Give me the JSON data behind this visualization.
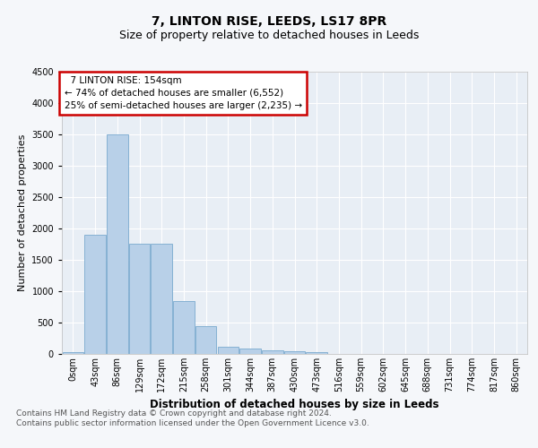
{
  "title1": "7, LINTON RISE, LEEDS, LS17 8PR",
  "title2": "Size of property relative to detached houses in Leeds",
  "xlabel": "Distribution of detached houses by size in Leeds",
  "ylabel": "Number of detached properties",
  "bar_labels": [
    "0sqm",
    "43sqm",
    "86sqm",
    "129sqm",
    "172sqm",
    "215sqm",
    "258sqm",
    "301sqm",
    "344sqm",
    "387sqm",
    "430sqm",
    "473sqm",
    "516sqm",
    "559sqm",
    "602sqm",
    "645sqm",
    "688sqm",
    "731sqm",
    "774sqm",
    "817sqm",
    "860sqm"
  ],
  "bar_values": [
    25,
    1900,
    3500,
    1760,
    1760,
    840,
    450,
    120,
    90,
    55,
    40,
    28,
    0,
    0,
    0,
    0,
    0,
    0,
    0,
    0,
    0
  ],
  "bar_color": "#b8d0e8",
  "bar_edge_color": "#7aaace",
  "background_color": "#e8eef5",
  "annotation_text": "  7 LINTON RISE: 154sqm\n← 74% of detached houses are smaller (6,552)\n25% of semi-detached houses are larger (2,235) →",
  "annotation_box_color": "#ffffff",
  "annotation_box_edge": "#cc0000",
  "ylim": [
    0,
    4500
  ],
  "footer": "Contains HM Land Registry data © Crown copyright and database right 2024.\nContains public sector information licensed under the Open Government Licence v3.0.",
  "grid_color": "#ffffff",
  "fig_bg": "#f5f7fa",
  "title1_fontsize": 10,
  "title2_fontsize": 9,
  "xlabel_fontsize": 8.5,
  "ylabel_fontsize": 8,
  "tick_fontsize": 7,
  "annotation_fontsize": 7.5,
  "footer_fontsize": 6.5
}
